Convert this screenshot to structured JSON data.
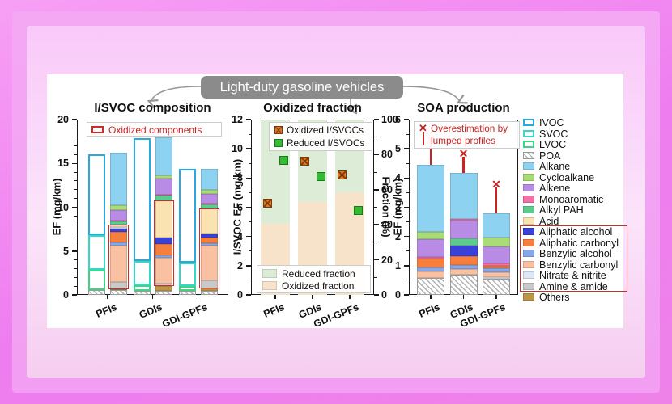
{
  "banner": {
    "label": "Light-duty gasoline vehicles"
  },
  "accent_colors": {
    "red_highlight": "#cf2b2b",
    "banner_gray": "#8b8b8b",
    "error_red": "#cc2222"
  },
  "legend": {
    "items": [
      {
        "key": "IVOC",
        "label": "IVOC",
        "swatch": "outline",
        "color": "#2aa9e0"
      },
      {
        "key": "SVOC",
        "label": "SVOC",
        "swatch": "outline",
        "color": "#35d8c5"
      },
      {
        "key": "LVOC",
        "label": "LVOC",
        "swatch": "outline",
        "color": "#3ed488"
      },
      {
        "key": "POA",
        "label": "POA",
        "swatch": "hatch",
        "color": "#9a9a9a"
      },
      {
        "key": "Alkane",
        "label": "Alkane",
        "swatch": "fill",
        "color": "#8ed2f2"
      },
      {
        "key": "Cycloalkane",
        "label": "Cycloalkane",
        "swatch": "fill",
        "color": "#a9dc76"
      },
      {
        "key": "Alkene",
        "label": "Alkene",
        "swatch": "fill",
        "color": "#b88be4"
      },
      {
        "key": "Monoaromatic",
        "label": "Monoaromatic",
        "swatch": "fill",
        "color": "#f66fa6"
      },
      {
        "key": "AlkylPAH",
        "label": "Alkyl PAH",
        "swatch": "fill",
        "color": "#5bcb8e"
      },
      {
        "key": "Acid",
        "label": "Acid",
        "swatch": "fill",
        "color": "#fae3b0"
      },
      {
        "key": "AliphaticAlcohol",
        "label": "Aliphatic alcohol",
        "swatch": "fill",
        "color": "#3a41d8"
      },
      {
        "key": "AliphaticCarbonyl",
        "label": "Aliphatic carbonyl",
        "swatch": "fill",
        "color": "#f87e3e"
      },
      {
        "key": "BenzylicAlcohol",
        "label": "Benzylic alcohol",
        "swatch": "fill",
        "color": "#87a7ea"
      },
      {
        "key": "BenzylicCarbonyl",
        "label": "Benzylic carbonyl",
        "swatch": "fill",
        "color": "#f9c0a2"
      },
      {
        "key": "NitrateNitrite",
        "label": "Nitrate & nitrite",
        "swatch": "fill",
        "color": "#dde7f8"
      },
      {
        "key": "AmineAmide",
        "label": "Amine & amide",
        "swatch": "fill",
        "color": "#c9c9c9"
      },
      {
        "key": "Others",
        "label": "Others",
        "swatch": "fill",
        "color": "#bd9545"
      }
    ],
    "boxed_range": [
      10,
      15
    ]
  },
  "chart_data": [
    {
      "type": "bar",
      "title": "I/SVOC composition",
      "ylabel": "EF (mg/km)",
      "ylim": [
        0,
        20
      ],
      "yticks": [
        0,
        5,
        10,
        15,
        20
      ],
      "categories": [
        "PFIs",
        "GDIs",
        "GDI-GPFs"
      ],
      "inner_legend_label": "Oxidized components",
      "volatility_bars": [
        {
          "category": "PFIs",
          "total": 16.0,
          "segments": [
            {
              "key": "POA",
              "value": 0.55
            },
            {
              "key": "LVOC",
              "value": 2.3
            },
            {
              "key": "SVOC",
              "value": 3.95
            },
            {
              "key": "IVOC",
              "value": 9.2
            }
          ]
        },
        {
          "category": "GDIs",
          "total": 17.9,
          "segments": [
            {
              "key": "POA",
              "value": 0.5
            },
            {
              "key": "LVOC",
              "value": 0.6
            },
            {
              "key": "SVOC",
              "value": 2.75
            },
            {
              "key": "IVOC",
              "value": 14.05
            }
          ]
        },
        {
          "category": "GDI-GPFs",
          "total": 14.35,
          "segments": [
            {
              "key": "POA",
              "value": 0.45
            },
            {
              "key": "LVOC",
              "value": 0.6
            },
            {
              "key": "SVOC",
              "value": 2.6
            },
            {
              "key": "IVOC",
              "value": 10.7
            }
          ]
        }
      ],
      "composition_bars": [
        {
          "category": "PFIs",
          "total": 16.2,
          "oxidized_box": [
            0.65,
            8.05
          ],
          "segments": [
            {
              "key": "POA",
              "value": 0.55
            },
            {
              "key": "Others",
              "value": 0.1
            },
            {
              "key": "AmineAmide",
              "value": 0.85
            },
            {
              "key": "BenzylicCarbonyl",
              "value": 4.15
            },
            {
              "key": "BenzylicAlcohol",
              "value": 0.3
            },
            {
              "key": "AliphaticCarbonyl",
              "value": 1.25
            },
            {
              "key": "AliphaticAlcohol",
              "value": 0.35
            },
            {
              "key": "NitrateNitrite",
              "value": 0.15
            },
            {
              "key": "Acid",
              "value": 0.35
            },
            {
              "key": "AlkylPAH",
              "value": 0.3
            },
            {
              "key": "Monoaromatic",
              "value": 0.1
            },
            {
              "key": "Alkene",
              "value": 1.25
            },
            {
              "key": "Cycloalkane",
              "value": 0.5
            },
            {
              "key": "Alkane",
              "value": 6.0
            }
          ]
        },
        {
          "category": "GDIs",
          "total": 18.0,
          "oxidized_box": [
            1.05,
            10.8
          ],
          "segments": [
            {
              "key": "POA",
              "value": 0.5
            },
            {
              "key": "Others",
              "value": 0.55
            },
            {
              "key": "AmineAmide",
              "value": 0.2
            },
            {
              "key": "BenzylicCarbonyl",
              "value": 2.95
            },
            {
              "key": "BenzylicAlcohol",
              "value": 0.35
            },
            {
              "key": "AliphaticCarbonyl",
              "value": 1.25
            },
            {
              "key": "AliphaticAlcohol",
              "value": 0.75
            },
            {
              "key": "Acid",
              "value": 4.25
            },
            {
              "key": "AlkylPAH",
              "value": 0.5
            },
            {
              "key": "Monoaromatic",
              "value": 0.15
            },
            {
              "key": "Alkene",
              "value": 1.85
            },
            {
              "key": "Cycloalkane",
              "value": 0.3
            },
            {
              "key": "Alkane",
              "value": 4.4
            }
          ]
        },
        {
          "category": "GDI-GPFs",
          "total": 14.4,
          "oxidized_box": [
            0.75,
            9.9
          ],
          "segments": [
            {
              "key": "POA",
              "value": 0.45
            },
            {
              "key": "Others",
              "value": 0.3
            },
            {
              "key": "AmineAmide",
              "value": 0.95
            },
            {
              "key": "BenzylicCarbonyl",
              "value": 3.9
            },
            {
              "key": "BenzylicAlcohol",
              "value": 0.3
            },
            {
              "key": "AliphaticCarbonyl",
              "value": 0.6
            },
            {
              "key": "AliphaticAlcohol",
              "value": 0.4
            },
            {
              "key": "NitrateNitrite",
              "value": 0.15
            },
            {
              "key": "Acid",
              "value": 2.85
            },
            {
              "key": "AlkylPAH",
              "value": 0.4
            },
            {
              "key": "Monoaromatic",
              "value": 0.15
            },
            {
              "key": "Alkene",
              "value": 1.05
            },
            {
              "key": "Cycloalkane",
              "value": 0.45
            },
            {
              "key": "Alkane",
              "value": 2.45
            }
          ]
        }
      ]
    },
    {
      "type": "bar+scatter",
      "title": "Oxidized fraction",
      "ylabel_left": "I/SVOC EF (mg/km)",
      "ylim_left": [
        0,
        12
      ],
      "yticks_left": [
        0,
        2,
        4,
        6,
        8,
        10,
        12
      ],
      "ylabel_right": "Fraction (%)",
      "ylim_right": [
        0,
        100
      ],
      "yticks_right": [
        0,
        20,
        40,
        60,
        80,
        100
      ],
      "categories": [
        "PFIs",
        "GDIs",
        "GDI-GPFs"
      ],
      "fraction_bars": [
        {
          "category": "PFIs",
          "oxidized_pct": 40.5,
          "reduced_pct": 59.5
        },
        {
          "category": "GDIs",
          "oxidized_pct": 53.0,
          "reduced_pct": 47.0
        },
        {
          "category": "GDI-GPFs",
          "oxidized_pct": 58.5,
          "reduced_pct": 41.5
        }
      ],
      "scatter": {
        "oxidized_ef": [
          6.3,
          9.15,
          8.2
        ],
        "reduced_ef": [
          9.2,
          8.1,
          5.8
        ]
      },
      "legend_top": [
        {
          "label": "Oxidized I/SVOCs",
          "color": "#e0761f",
          "border": "#7a3c0c",
          "cross": true
        },
        {
          "label": "Reduced I/SVOCs",
          "color": "#33bb33",
          "border": "#187a18",
          "cross": false
        }
      ],
      "legend_bottom": [
        {
          "label": "Reduced fraction",
          "color": "#dcecd7"
        },
        {
          "label": "Oxidized fraction",
          "color": "#f6e3c9"
        }
      ]
    },
    {
      "type": "bar",
      "title": "SOA production",
      "ylabel": "EF (mg/km)",
      "ylim": [
        0,
        6
      ],
      "yticks": [
        0,
        1,
        2,
        3,
        4,
        5,
        6
      ],
      "categories": [
        "PFIs",
        "GDIs",
        "GDI-GPFs"
      ],
      "annotation_label": "Overestimation by lumped profiles",
      "bars": [
        {
          "category": "PFIs",
          "total": 4.45,
          "overestimation": 5.3,
          "segments": [
            {
              "key": "POA",
              "value": 0.57
            },
            {
              "key": "BenzylicCarbonyl",
              "value": 0.23
            },
            {
              "key": "BenzylicAlcohol",
              "value": 0.15
            },
            {
              "key": "AliphaticCarbonyl",
              "value": 0.3
            },
            {
              "key": "Monoaromatic",
              "value": 0.05
            },
            {
              "key": "Alkene",
              "value": 0.6
            },
            {
              "key": "Cycloalkane",
              "value": 0.25
            },
            {
              "key": "Alkane",
              "value": 2.3
            }
          ]
        },
        {
          "category": "GDIs",
          "total": 4.17,
          "overestimation": 4.85,
          "segments": [
            {
              "key": "POA",
              "value": 0.7
            },
            {
              "key": "BenzylicCarbonyl",
              "value": 0.19
            },
            {
              "key": "BenzylicAlcohol",
              "value": 0.13
            },
            {
              "key": "AliphaticCarbonyl",
              "value": 0.3
            },
            {
              "key": "AliphaticAlcohol",
              "value": 0.37
            },
            {
              "key": "AlkylPAH",
              "value": 0.25
            },
            {
              "key": "Alkene",
              "value": 0.6
            },
            {
              "key": "Monoaromatic",
              "value": 0.06
            },
            {
              "key": "Alkane",
              "value": 1.57
            }
          ]
        },
        {
          "category": "GDI-GPFs",
          "total": 2.8,
          "overestimation": 3.8,
          "segments": [
            {
              "key": "POA",
              "value": 0.55
            },
            {
              "key": "NitrateNitrite",
              "value": 0.07
            },
            {
              "key": "BenzylicCarbonyl",
              "value": 0.16
            },
            {
              "key": "BenzylicAlcohol",
              "value": 0.12
            },
            {
              "key": "AliphaticCarbonyl",
              "value": 0.1
            },
            {
              "key": "Monoaromatic",
              "value": 0.07
            },
            {
              "key": "Alkene",
              "value": 0.58
            },
            {
              "key": "Cycloalkane",
              "value": 0.3
            },
            {
              "key": "Alkane",
              "value": 0.85
            }
          ]
        }
      ]
    }
  ]
}
